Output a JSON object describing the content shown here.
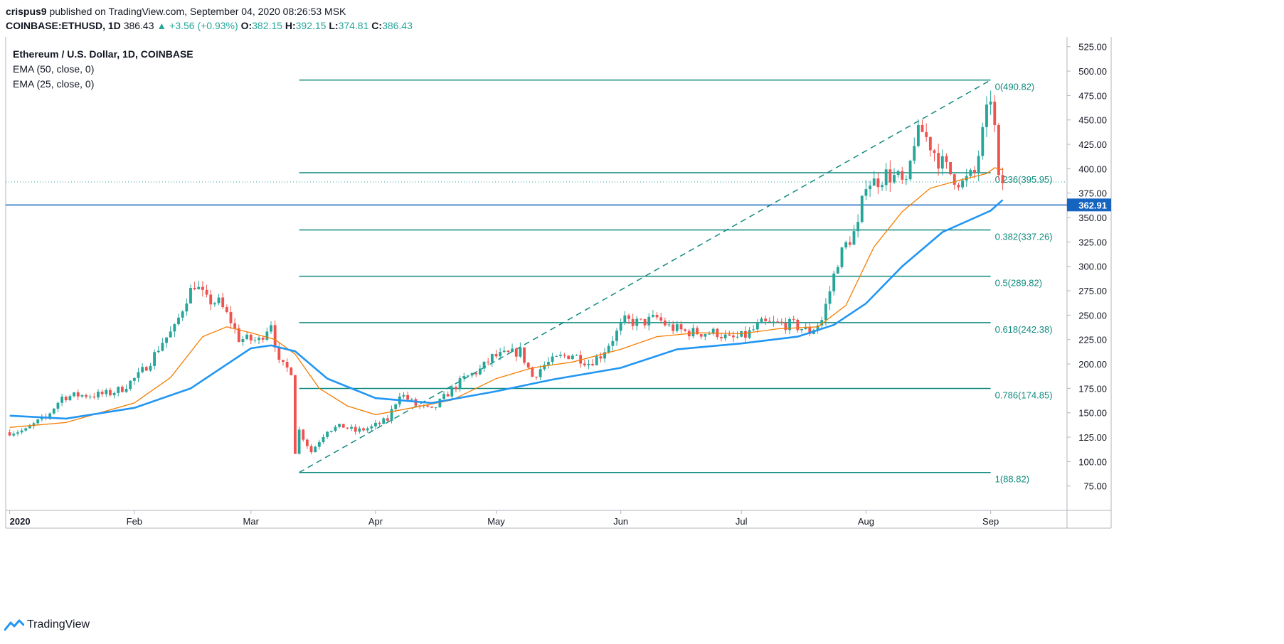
{
  "header": {
    "author": "crispus9",
    "published": "published on TradingView.com, September 04, 2020 08:26:53 MSK",
    "symbol": "COINBASE:ETHUSD, 1D",
    "last": "386.43",
    "change": "+3.56 (+0.93%)",
    "o_label": "O:",
    "o": "382.15",
    "h_label": "H:",
    "h": "392.15",
    "l_label": "L:",
    "l": "374.81",
    "c_label": "C:",
    "c": "386.43"
  },
  "legend": {
    "title": "Ethereum / U.S. Dollar, 1D, COINBASE",
    "ema50": "EMA (50, close, 0)",
    "ema25": "EMA (25, close, 0)"
  },
  "footer": {
    "brand": "TradingView",
    "icon": "tradingview-logo-icon"
  },
  "colors": {
    "up": "#26a69a",
    "down": "#ef5350",
    "ema50": "#2196f3",
    "ema25": "#f57c00",
    "fib": "#0f8a7e",
    "price_line": "#1565c0"
  },
  "chart_data": {
    "type": "candlestick",
    "x_range": [
      "2019-12-31",
      "2020-09-20"
    ],
    "ylim": [
      50,
      535
    ],
    "y_ticks": [
      "525.00",
      "500.00",
      "475.00",
      "450.00",
      "425.00",
      "400.00",
      "375.00",
      "350.00",
      "325.00",
      "300.00",
      "275.00",
      "250.00",
      "225.00",
      "200.00",
      "175.00",
      "150.00",
      "125.00",
      "100.00",
      "75.00"
    ],
    "x_ticks": [
      {
        "date": "2020-01-01",
        "label": "2020"
      },
      {
        "date": "2020-02-01",
        "label": "Feb"
      },
      {
        "date": "2020-03-01",
        "label": "Mar"
      },
      {
        "date": "2020-04-01",
        "label": "Apr"
      },
      {
        "date": "2020-05-01",
        "label": "May"
      },
      {
        "date": "2020-06-01",
        "label": "Jun"
      },
      {
        "date": "2020-07-01",
        "label": "Jul"
      },
      {
        "date": "2020-08-01",
        "label": "Aug"
      },
      {
        "date": "2020-09-01",
        "label": "Sep"
      }
    ],
    "price_line": {
      "value": 362.91,
      "label": "362.91"
    },
    "last_close_line": 386.43,
    "fib_start": {
      "date": "2020-03-13",
      "value": 88.82
    },
    "fib_end": {
      "date": "2020-09-01",
      "value": 490.82
    },
    "fib_levels": [
      {
        "label": "0(490.82)",
        "value": 490.82
      },
      {
        "label": "0.236(395.95)",
        "value": 395.95
      },
      {
        "label": "0.382(337.26)",
        "value": 337.26
      },
      {
        "label": "0.5(289.82)",
        "value": 289.82
      },
      {
        "label": "0.618(242.38)",
        "value": 242.38
      },
      {
        "label": "0.786(174.85)",
        "value": 174.85
      },
      {
        "label": "1(88.82)",
        "value": 88.82
      }
    ],
    "close_path": [
      [
        "2020-01-01",
        130
      ],
      [
        "2020-01-05",
        132
      ],
      [
        "2020-01-08",
        141
      ],
      [
        "2020-01-10",
        145
      ],
      [
        "2020-01-14",
        166
      ],
      [
        "2020-01-18",
        168
      ],
      [
        "2020-01-22",
        168
      ],
      [
        "2020-01-26",
        170
      ],
      [
        "2020-01-29",
        175
      ],
      [
        "2020-02-02",
        188
      ],
      [
        "2020-02-05",
        203
      ],
      [
        "2020-02-08",
        223
      ],
      [
        "2020-02-11",
        236
      ],
      [
        "2020-02-14",
        268
      ],
      [
        "2020-02-16",
        282
      ],
      [
        "2020-02-19",
        265
      ],
      [
        "2020-02-22",
        263
      ],
      [
        "2020-02-25",
        244
      ],
      [
        "2020-02-27",
        226
      ],
      [
        "2020-02-29",
        225
      ],
      [
        "2020-03-03",
        224
      ],
      [
        "2020-03-06",
        243
      ],
      [
        "2020-03-08",
        200
      ],
      [
        "2020-03-11",
        193
      ],
      [
        "2020-03-12",
        110
      ],
      [
        "2020-03-13",
        132
      ],
      [
        "2020-03-16",
        110
      ],
      [
        "2020-03-20",
        133
      ],
      [
        "2020-03-24",
        136
      ],
      [
        "2020-03-27",
        131
      ],
      [
        "2020-03-31",
        135
      ],
      [
        "2020-04-04",
        143
      ],
      [
        "2020-04-07",
        170
      ],
      [
        "2020-04-11",
        158
      ],
      [
        "2020-04-15",
        152
      ],
      [
        "2020-04-19",
        170
      ],
      [
        "2020-04-23",
        185
      ],
      [
        "2020-04-27",
        194
      ],
      [
        "2020-04-30",
        207
      ],
      [
        "2020-05-04",
        210
      ],
      [
        "2020-05-07",
        213
      ],
      [
        "2020-05-10",
        187
      ],
      [
        "2020-05-13",
        199
      ],
      [
        "2020-05-17",
        207
      ],
      [
        "2020-05-20",
        210
      ],
      [
        "2020-05-24",
        201
      ],
      [
        "2020-05-27",
        209
      ],
      [
        "2020-05-31",
        232
      ],
      [
        "2020-06-02",
        244
      ],
      [
        "2020-06-06",
        242
      ],
      [
        "2020-06-10",
        247
      ],
      [
        "2020-06-13",
        238
      ],
      [
        "2020-06-17",
        233
      ],
      [
        "2020-06-21",
        232
      ],
      [
        "2020-06-25",
        232
      ],
      [
        "2020-06-28",
        225
      ],
      [
        "2020-07-02",
        229
      ],
      [
        "2020-07-06",
        241
      ],
      [
        "2020-07-10",
        241
      ],
      [
        "2020-07-14",
        240
      ],
      [
        "2020-07-18",
        233
      ],
      [
        "2020-07-21",
        245
      ],
      [
        "2020-07-23",
        275
      ],
      [
        "2020-07-25",
        306
      ],
      [
        "2020-07-27",
        322
      ],
      [
        "2020-07-30",
        340
      ],
      [
        "2020-08-01",
        388
      ],
      [
        "2020-08-03",
        386
      ],
      [
        "2020-08-06",
        394
      ],
      [
        "2020-08-09",
        390
      ],
      [
        "2020-08-11",
        380
      ],
      [
        "2020-08-13",
        430
      ],
      [
        "2020-08-15",
        438
      ],
      [
        "2020-08-17",
        425
      ],
      [
        "2020-08-19",
        410
      ],
      [
        "2020-08-22",
        395
      ],
      [
        "2020-08-25",
        385
      ],
      [
        "2020-08-28",
        395
      ],
      [
        "2020-08-30",
        435
      ],
      [
        "2020-09-01",
        475
      ],
      [
        "2020-09-02",
        440
      ],
      [
        "2020-09-03",
        386
      ],
      [
        "2020-09-04",
        386.43
      ]
    ],
    "ema25_path": [
      [
        "2020-01-01",
        135
      ],
      [
        "2020-01-15",
        140
      ],
      [
        "2020-02-01",
        160
      ],
      [
        "2020-02-10",
        186
      ],
      [
        "2020-02-18",
        228
      ],
      [
        "2020-02-24",
        238
      ],
      [
        "2020-03-01",
        232
      ],
      [
        "2020-03-07",
        225
      ],
      [
        "2020-03-12",
        210
      ],
      [
        "2020-03-18",
        175
      ],
      [
        "2020-03-25",
        157
      ],
      [
        "2020-04-01",
        148
      ],
      [
        "2020-04-10",
        155
      ],
      [
        "2020-04-20",
        163
      ],
      [
        "2020-05-01",
        185
      ],
      [
        "2020-05-10",
        196
      ],
      [
        "2020-05-20",
        202
      ],
      [
        "2020-06-01",
        215
      ],
      [
        "2020-06-10",
        228
      ],
      [
        "2020-06-20",
        232
      ],
      [
        "2020-07-01",
        231
      ],
      [
        "2020-07-10",
        236
      ],
      [
        "2020-07-20",
        238
      ],
      [
        "2020-07-27",
        260
      ],
      [
        "2020-08-03",
        320
      ],
      [
        "2020-08-10",
        356
      ],
      [
        "2020-08-17",
        380
      ],
      [
        "2020-08-24",
        388
      ],
      [
        "2020-08-31",
        395
      ],
      [
        "2020-09-02",
        401
      ],
      [
        "2020-09-04",
        399
      ]
    ],
    "ema50_path": [
      [
        "2020-01-01",
        147
      ],
      [
        "2020-01-15",
        144
      ],
      [
        "2020-02-01",
        155
      ],
      [
        "2020-02-15",
        175
      ],
      [
        "2020-03-01",
        216
      ],
      [
        "2020-03-06",
        219
      ],
      [
        "2020-03-12",
        213
      ],
      [
        "2020-03-20",
        185
      ],
      [
        "2020-04-01",
        165
      ],
      [
        "2020-04-15",
        160
      ],
      [
        "2020-05-01",
        172
      ],
      [
        "2020-05-15",
        184
      ],
      [
        "2020-06-01",
        196
      ],
      [
        "2020-06-15",
        215
      ],
      [
        "2020-07-01",
        221
      ],
      [
        "2020-07-15",
        228
      ],
      [
        "2020-07-24",
        240
      ],
      [
        "2020-08-01",
        262
      ],
      [
        "2020-08-10",
        300
      ],
      [
        "2020-08-20",
        335
      ],
      [
        "2020-09-01",
        357
      ],
      [
        "2020-09-04",
        368
      ]
    ]
  }
}
